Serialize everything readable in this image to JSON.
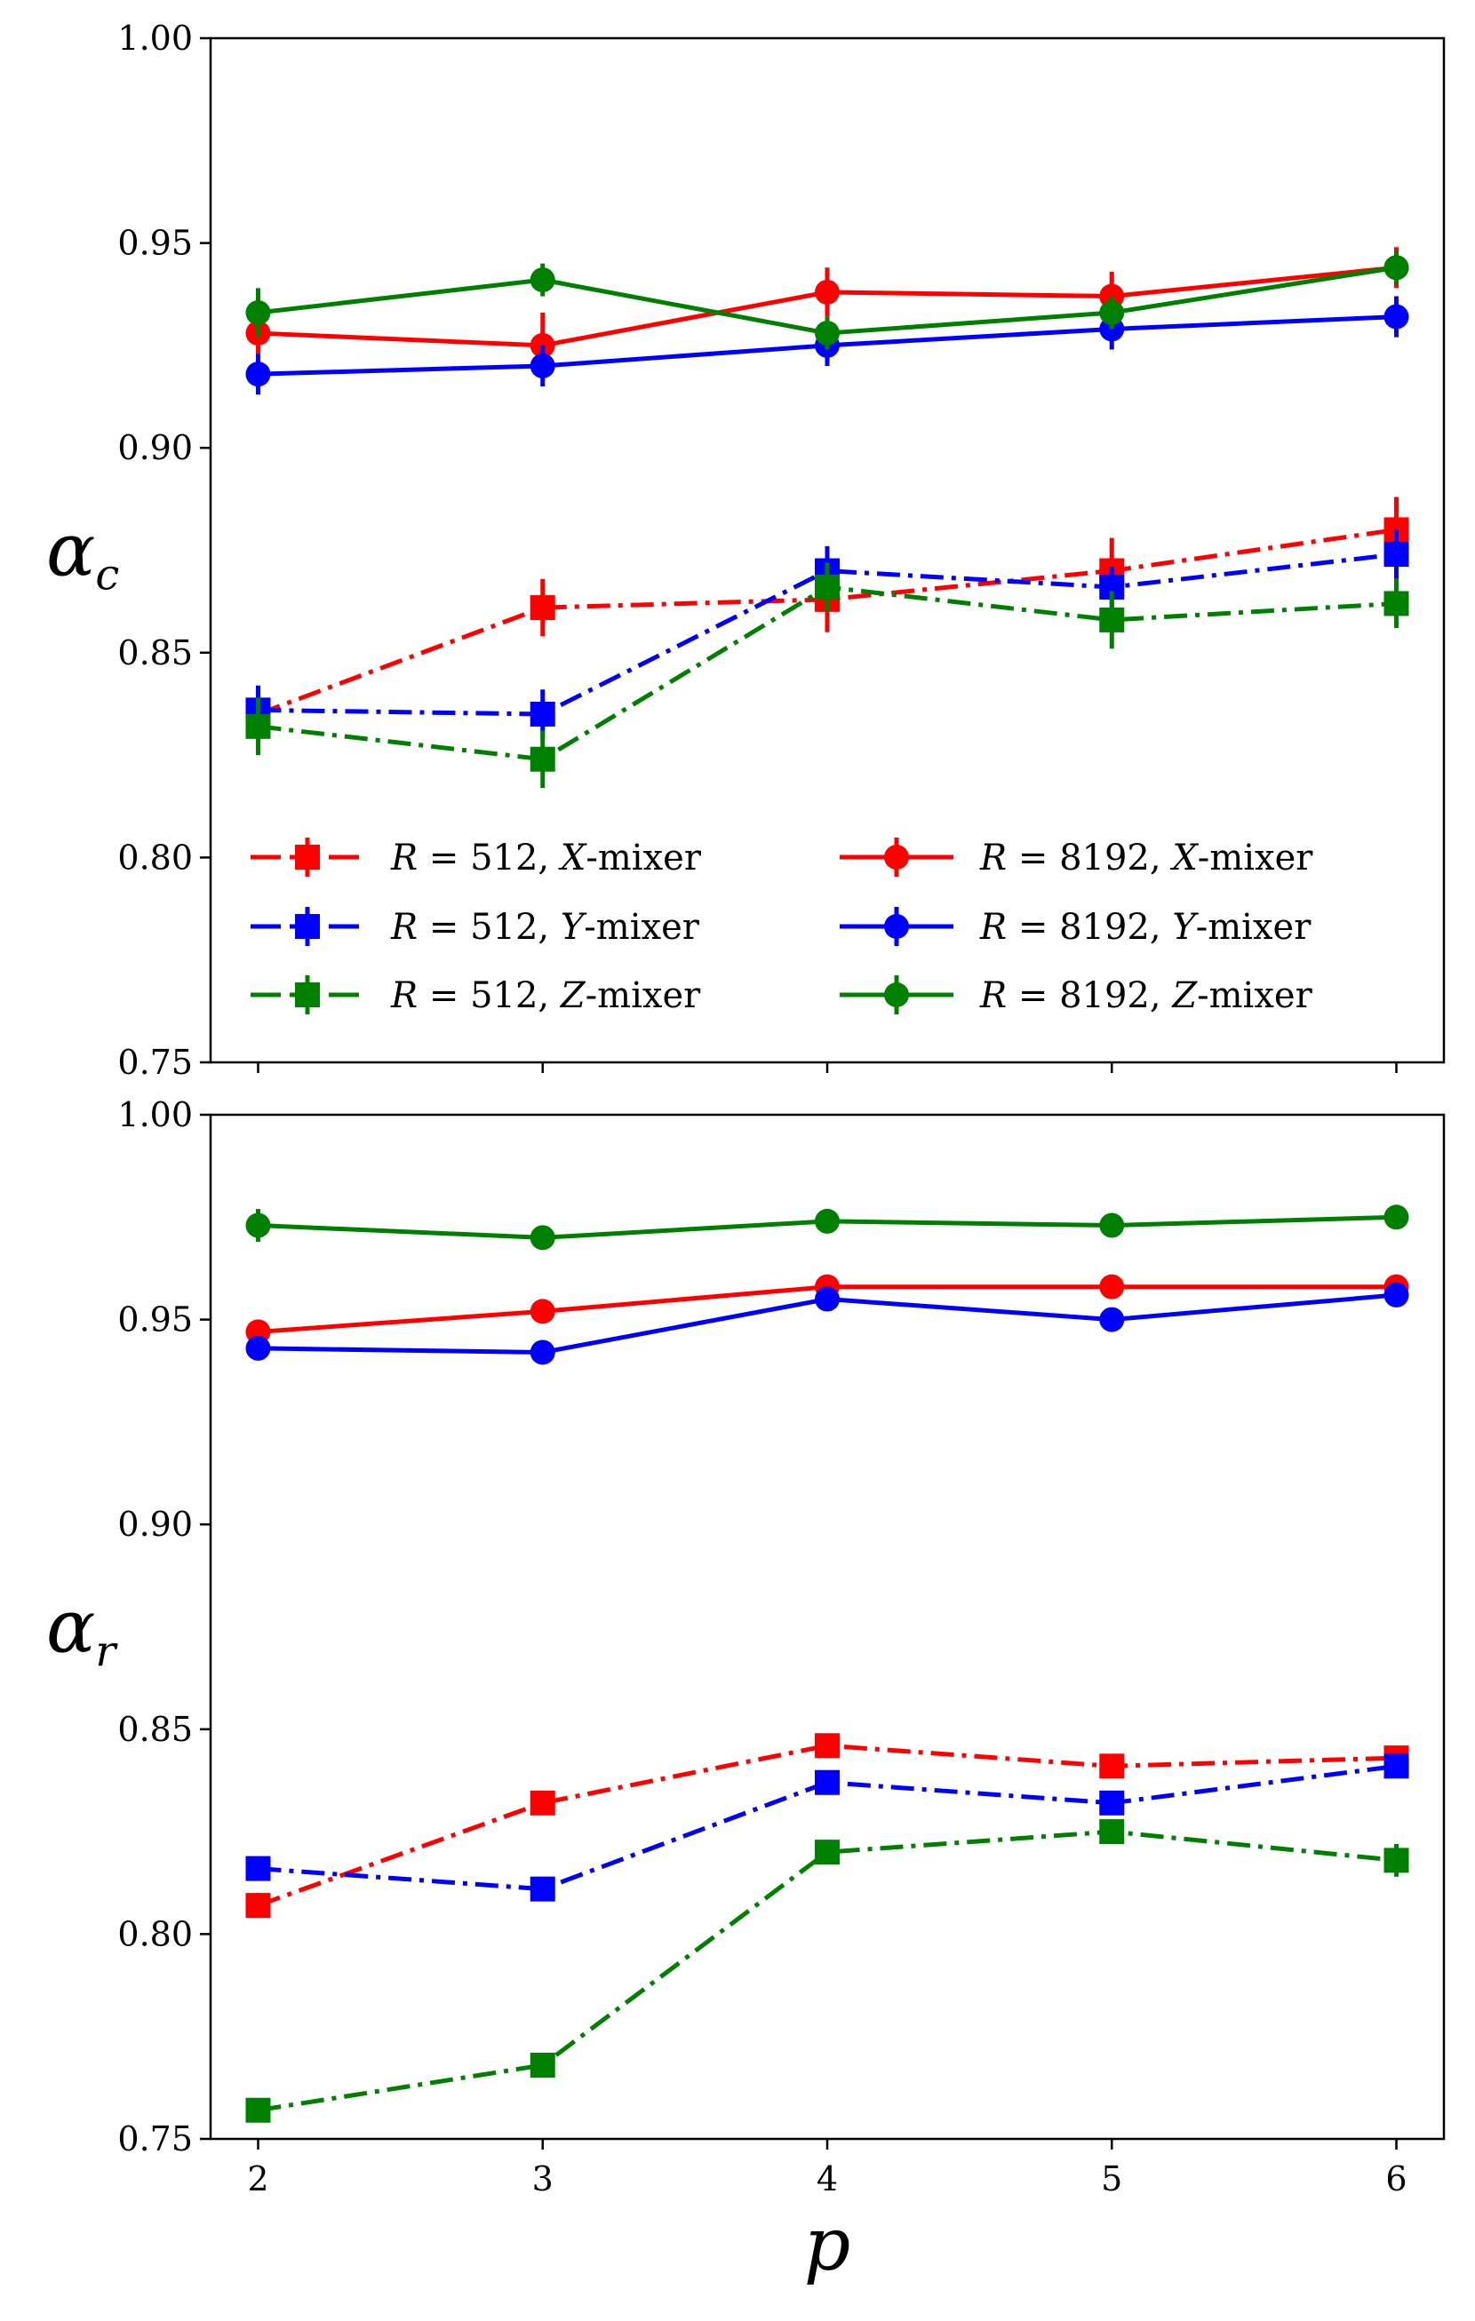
{
  "chart_data": [
    {
      "type": "line",
      "panel": "top",
      "ylabel": "α",
      "ylabel_sub": "c",
      "xlabel": "",
      "x": [
        2,
        3,
        4,
        5,
        6
      ],
      "xticks": [
        "2",
        "3",
        "4",
        "5",
        "6"
      ],
      "ylim": [
        0.75,
        1.0
      ],
      "yticks": [
        "0.75",
        "0.80",
        "0.85",
        "0.90",
        "0.95",
        "1.00"
      ],
      "legend_location": "lower-left",
      "series": [
        {
          "name": "R = 512,  X-mixer",
          "R": "512",
          "mixer": "X",
          "color": "#ff0000",
          "marker": "square",
          "dash": "dashdot",
          "values": [
            0.835,
            0.861,
            0.863,
            0.87,
            0.88
          ],
          "errors": [
            0.004,
            0.007,
            0.008,
            0.008,
            0.008
          ]
        },
        {
          "name": "R = 512,  Y-mixer",
          "R": "512",
          "mixer": "Y",
          "color": "#0000ff",
          "marker": "square",
          "dash": "dashdot",
          "values": [
            0.836,
            0.835,
            0.87,
            0.866,
            0.874
          ],
          "errors": [
            0.006,
            0.006,
            0.006,
            0.005,
            0.006
          ]
        },
        {
          "name": "R = 512,  Z-mixer",
          "R": "512",
          "mixer": "Z",
          "color": "#008000",
          "marker": "square",
          "dash": "dashdot",
          "values": [
            0.832,
            0.824,
            0.866,
            0.858,
            0.862
          ],
          "errors": [
            0.007,
            0.007,
            0.006,
            0.007,
            0.006
          ]
        },
        {
          "name": "R = 8192,  X-mixer",
          "R": "8192",
          "mixer": "X",
          "color": "#ff0000",
          "marker": "circle",
          "dash": "solid",
          "values": [
            0.928,
            0.925,
            0.938,
            0.937,
            0.944
          ],
          "errors": [
            0.005,
            0.008,
            0.006,
            0.006,
            0.005
          ]
        },
        {
          "name": "R = 8192,  Y-mixer",
          "R": "8192",
          "mixer": "Y",
          "color": "#0000ff",
          "marker": "circle",
          "dash": "solid",
          "values": [
            0.918,
            0.92,
            0.925,
            0.929,
            0.932
          ],
          "errors": [
            0.005,
            0.005,
            0.005,
            0.005,
            0.005
          ]
        },
        {
          "name": "R = 8192,  Z-mixer",
          "R": "8192",
          "mixer": "Z",
          "color": "#008000",
          "marker": "circle",
          "dash": "solid",
          "values": [
            0.933,
            0.941,
            0.928,
            0.933,
            0.944
          ],
          "errors": [
            0.006,
            0.004,
            0.004,
            0.004,
            0.004
          ]
        }
      ]
    },
    {
      "type": "line",
      "panel": "bottom",
      "ylabel": "α",
      "ylabel_sub": "r",
      "xlabel": "p",
      "x": [
        2,
        3,
        4,
        5,
        6
      ],
      "xticks": [
        "2",
        "3",
        "4",
        "5",
        "6"
      ],
      "ylim": [
        0.75,
        1.0
      ],
      "yticks": [
        "0.75",
        "0.80",
        "0.85",
        "0.90",
        "0.95",
        "1.00"
      ],
      "series": [
        {
          "name": "R = 512,  X-mixer",
          "color": "#ff0000",
          "marker": "square",
          "dash": "dashdot",
          "values": [
            0.807,
            0.832,
            0.846,
            0.841,
            0.843
          ],
          "errors": [
            0.003,
            0.002,
            0.002,
            0.002,
            0.002
          ]
        },
        {
          "name": "R = 512,  Y-mixer",
          "color": "#0000ff",
          "marker": "square",
          "dash": "dashdot",
          "values": [
            0.816,
            0.811,
            0.837,
            0.832,
            0.841
          ],
          "errors": [
            0.002,
            0.002,
            0.002,
            0.002,
            0.002
          ]
        },
        {
          "name": "R = 512,  Z-mixer",
          "color": "#008000",
          "marker": "square",
          "dash": "dashdot",
          "values": [
            0.757,
            0.768,
            0.82,
            0.825,
            0.818
          ],
          "errors": [
            0.002,
            0.003,
            0.003,
            0.003,
            0.004
          ]
        },
        {
          "name": "R = 8192,  X-mixer",
          "color": "#ff0000",
          "marker": "circle",
          "dash": "solid",
          "values": [
            0.947,
            0.952,
            0.958,
            0.958,
            0.958
          ],
          "errors": [
            0.002,
            0.002,
            0.002,
            0.002,
            0.002
          ]
        },
        {
          "name": "R = 8192,  Y-mixer",
          "color": "#0000ff",
          "marker": "circle",
          "dash": "solid",
          "values": [
            0.943,
            0.942,
            0.955,
            0.95,
            0.956
          ],
          "errors": [
            0.002,
            0.002,
            0.002,
            0.002,
            0.002
          ]
        },
        {
          "name": "R = 8192,  Z-mixer",
          "color": "#008000",
          "marker": "circle",
          "dash": "solid",
          "values": [
            0.973,
            0.97,
            0.974,
            0.973,
            0.975
          ],
          "errors": [
            0.004,
            0.002,
            0.002,
            0.002,
            0.002
          ]
        }
      ]
    }
  ]
}
